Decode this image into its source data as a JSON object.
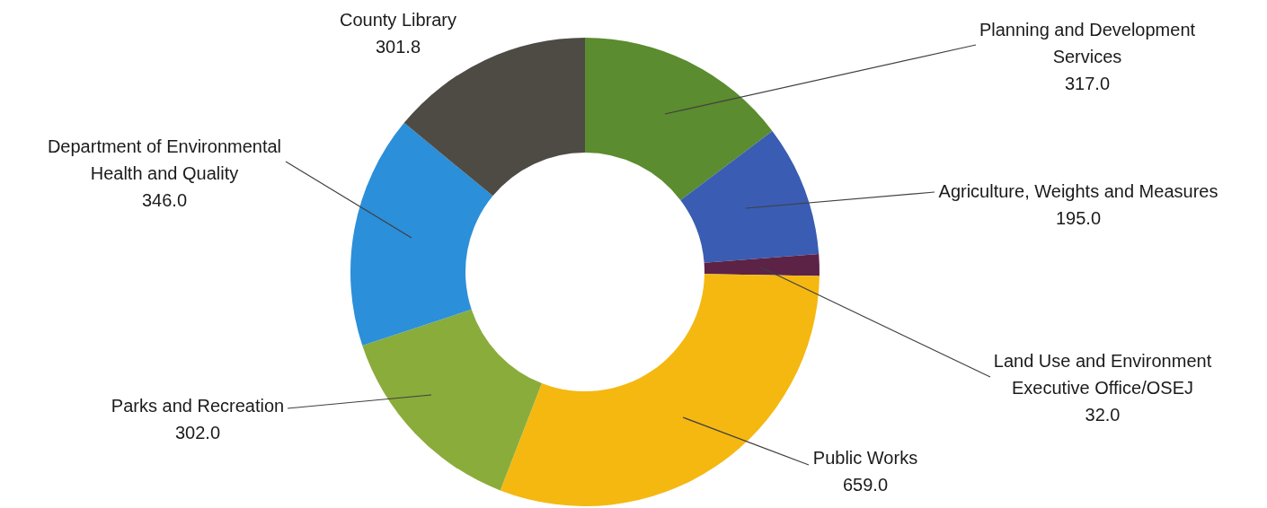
{
  "chart_data": {
    "type": "donut",
    "categories": [
      "Planning and Development Services",
      "Agriculture, Weights and Measures",
      "Land Use and Environment Executive Office/OSEJ",
      "Public Works",
      "Parks and Recreation",
      "Department of Environmental Health and Quality",
      "County Library"
    ],
    "values": [
      317.0,
      195.0,
      32.0,
      659.0,
      302.0,
      346.0,
      301.8
    ],
    "value_labels": [
      "317.0",
      "195.0",
      "32.0",
      "659.0",
      "302.0",
      "346.0",
      "301.8"
    ],
    "colors": [
      "#5b8c2f",
      "#3a5cb2",
      "#5c2346",
      "#f5b811",
      "#8aac3b",
      "#2b8fd9",
      "#4e4b45"
    ]
  }
}
